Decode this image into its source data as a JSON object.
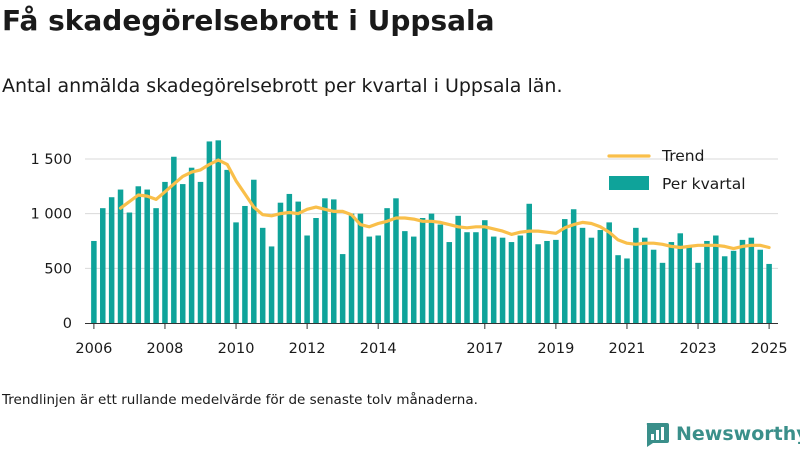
{
  "title": "Få skadegörelsebrott i Uppsala",
  "subtitle": "Antal anmälda skadegörelsebrott per kvartal i Uppsala län.",
  "footnote": "Trendlinjen är ett rullande medelvärde för de senaste tolv månaderna.",
  "brand": {
    "name": "Newsworthy",
    "icon": "newsworthy-logo-icon"
  },
  "colors": {
    "bars": "#0fa39a",
    "trend": "#f9bf4a",
    "grid": "#d9d9d9",
    "axis": "#333333",
    "brand": "#3a8f8a"
  },
  "chart_data": {
    "type": "bar",
    "x_start": 2006.0,
    "x_step": 0.25,
    "xlim": [
      2005.75,
      2025.25
    ],
    "ylim": [
      0,
      1600
    ],
    "grid": true,
    "legend_position": "top-right",
    "x_tick_labels": [
      "2006",
      "2008",
      "2010",
      "2012",
      "2014",
      "2017",
      "2019",
      "2021",
      "2023",
      "2025"
    ],
    "x_tick_values": [
      2006,
      2008,
      2010,
      2012,
      2014,
      2017,
      2019,
      2021,
      2023,
      2025
    ],
    "y_tick_labels": [
      "0",
      "500",
      "1 000",
      "1 500"
    ],
    "y_tick_values": [
      0,
      500,
      1000,
      1500
    ],
    "series": [
      {
        "name": "Per kvartal",
        "kind": "bar",
        "values": [
          750,
          1050,
          1150,
          1220,
          1010,
          1250,
          1220,
          1050,
          1290,
          1520,
          1270,
          1420,
          1290,
          1660,
          1670,
          1400,
          920,
          1070,
          1310,
          870,
          700,
          1100,
          1180,
          1110,
          800,
          960,
          1140,
          1130,
          630,
          1000,
          1000,
          790,
          800,
          1050,
          1140,
          840,
          790,
          960,
          1000,
          900,
          740,
          980,
          830,
          830,
          940,
          790,
          780,
          740,
          800,
          1090,
          720,
          750,
          760,
          950,
          1040,
          870,
          780,
          850,
          920,
          620,
          590,
          870,
          780,
          670,
          550,
          740,
          820,
          710,
          550,
          750,
          800,
          610,
          660,
          760,
          780,
          670,
          540
        ]
      },
      {
        "name": "Trend",
        "kind": "line",
        "x": [
          2006.75,
          2007.0,
          2007.25,
          2007.5,
          2007.75,
          2008.0,
          2008.25,
          2008.5,
          2008.75,
          2009.0,
          2009.25,
          2009.5,
          2009.75,
          2010.0,
          2010.25,
          2010.5,
          2010.75,
          2011.0,
          2011.25,
          2011.5,
          2011.75,
          2012.0,
          2012.25,
          2012.5,
          2012.75,
          2013.0,
          2013.25,
          2013.5,
          2013.75,
          2014.0,
          2014.25,
          2014.5,
          2014.75,
          2015.0,
          2015.25,
          2015.5,
          2015.75,
          2016.0,
          2016.25,
          2016.5,
          2016.75,
          2017.0,
          2017.25,
          2017.5,
          2017.75,
          2018.0,
          2018.25,
          2018.5,
          2018.75,
          2019.0,
          2019.25,
          2019.5,
          2019.75,
          2020.0,
          2020.25,
          2020.5,
          2020.75,
          2021.0,
          2021.25,
          2021.5,
          2021.75,
          2022.0,
          2022.25,
          2022.5,
          2022.75,
          2023.0,
          2023.25,
          2023.5,
          2023.75,
          2024.0,
          2024.25,
          2024.5,
          2024.75,
          2025.0
        ],
        "values": [
          1050,
          1110,
          1170,
          1160,
          1130,
          1200,
          1270,
          1340,
          1380,
          1400,
          1450,
          1490,
          1450,
          1300,
          1180,
          1060,
          990,
          980,
          1000,
          1010,
          1000,
          1040,
          1060,
          1040,
          1020,
          1020,
          990,
          900,
          880,
          910,
          930,
          960,
          960,
          950,
          930,
          930,
          920,
          900,
          880,
          870,
          880,
          880,
          860,
          840,
          810,
          830,
          840,
          840,
          830,
          820,
          870,
          900,
          920,
          910,
          880,
          830,
          760,
          730,
          720,
          730,
          730,
          720,
          700,
          690,
          700,
          710,
          710,
          710,
          700,
          680,
          700,
          710,
          710,
          690
        ]
      }
    ]
  }
}
